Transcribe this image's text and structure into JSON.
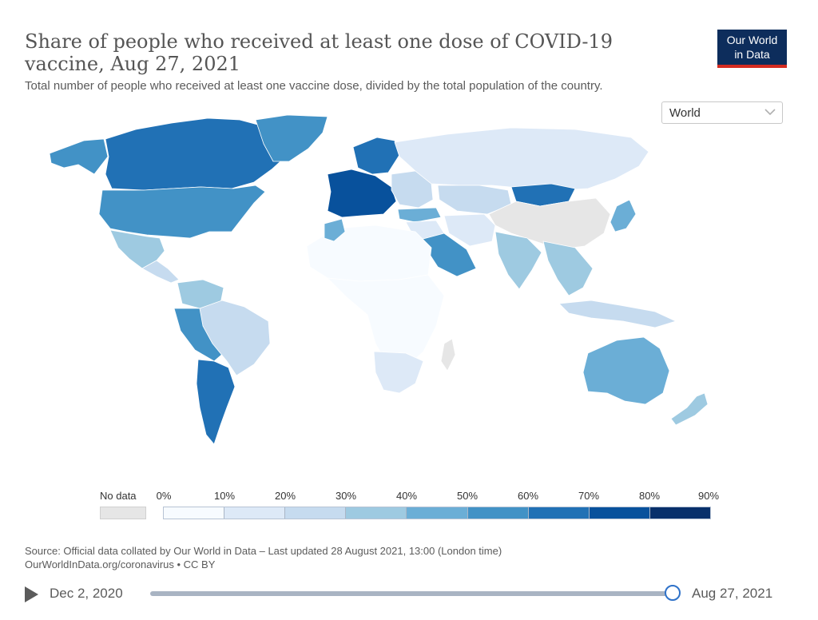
{
  "header": {
    "title": "Share of people who received at least one dose of COVID-19 vaccine, Aug 27, 2021",
    "subtitle": "Total number of people who received at least one vaccine dose, divided by the total population of the country.",
    "logo_line1": "Our World",
    "logo_line2": "in Data"
  },
  "region_select": {
    "value": "World",
    "icon": "chevron-down-icon"
  },
  "legend": {
    "no_data_label": "No data",
    "no_data_color": "#e6e6e6",
    "ticks": [
      "0%",
      "10%",
      "20%",
      "30%",
      "40%",
      "50%",
      "60%",
      "70%",
      "80%",
      "90%"
    ],
    "bin_colors": [
      "#f7fbff",
      "#dde9f7",
      "#c6dbef",
      "#9ecae1",
      "#6baed6",
      "#4292c6",
      "#2171b5",
      "#08519c",
      "#08306b"
    ]
  },
  "regions": [
    {
      "name": "Alaska",
      "bin": 5
    },
    {
      "name": "Canada",
      "bin": 6
    },
    {
      "name": "Greenland",
      "bin": 5
    },
    {
      "name": "United States",
      "bin": 5
    },
    {
      "name": "Mexico",
      "bin": 3
    },
    {
      "name": "Central America",
      "bin": 2
    },
    {
      "name": "Colombia & Venezuela",
      "bin": 3
    },
    {
      "name": "Brazil",
      "bin": 5
    },
    {
      "name": "Peru & Bolivia",
      "bin": 2
    },
    {
      "name": "Argentina & Chile",
      "bin": 6
    },
    {
      "name": "Western Europe",
      "bin": 7
    },
    {
      "name": "Scandinavia",
      "bin": 6
    },
    {
      "name": "Eastern Europe",
      "bin": 2
    },
    {
      "name": "Russia",
      "bin": 1
    },
    {
      "name": "Kazakhstan",
      "bin": 2
    },
    {
      "name": "Mongolia",
      "bin": 6
    },
    {
      "name": "China",
      "bin": -1
    },
    {
      "name": "Japan",
      "bin": 4
    },
    {
      "name": "Turkey",
      "bin": 4
    },
    {
      "name": "Middle East",
      "bin": 1
    },
    {
      "name": "Saudi Arabia",
      "bin": 5
    },
    {
      "name": "Iran & Central Asia",
      "bin": 1
    },
    {
      "name": "India",
      "bin": 3
    },
    {
      "name": "Southeast Asia",
      "bin": 3
    },
    {
      "name": "Indonesia",
      "bin": 2
    },
    {
      "name": "North Africa",
      "bin": 0
    },
    {
      "name": "Morocco",
      "bin": 4
    },
    {
      "name": "Sub-Saharan Africa",
      "bin": 0
    },
    {
      "name": "Southern Africa",
      "bin": 1
    },
    {
      "name": "Madagascar",
      "bin": -1
    },
    {
      "name": "Australia",
      "bin": 4
    },
    {
      "name": "New Zealand",
      "bin": 3
    }
  ],
  "source": {
    "line1": "Source: Official data collated by Our World in Data – Last updated 28 August 2021, 13:00 (London time)",
    "line2": "OurWorldInData.org/coronavirus • CC BY"
  },
  "timeline": {
    "start_label": "Dec 2, 2020",
    "end_label": "Aug 27, 2021",
    "position_fraction": 1.0,
    "play_icon": "play-icon"
  }
}
